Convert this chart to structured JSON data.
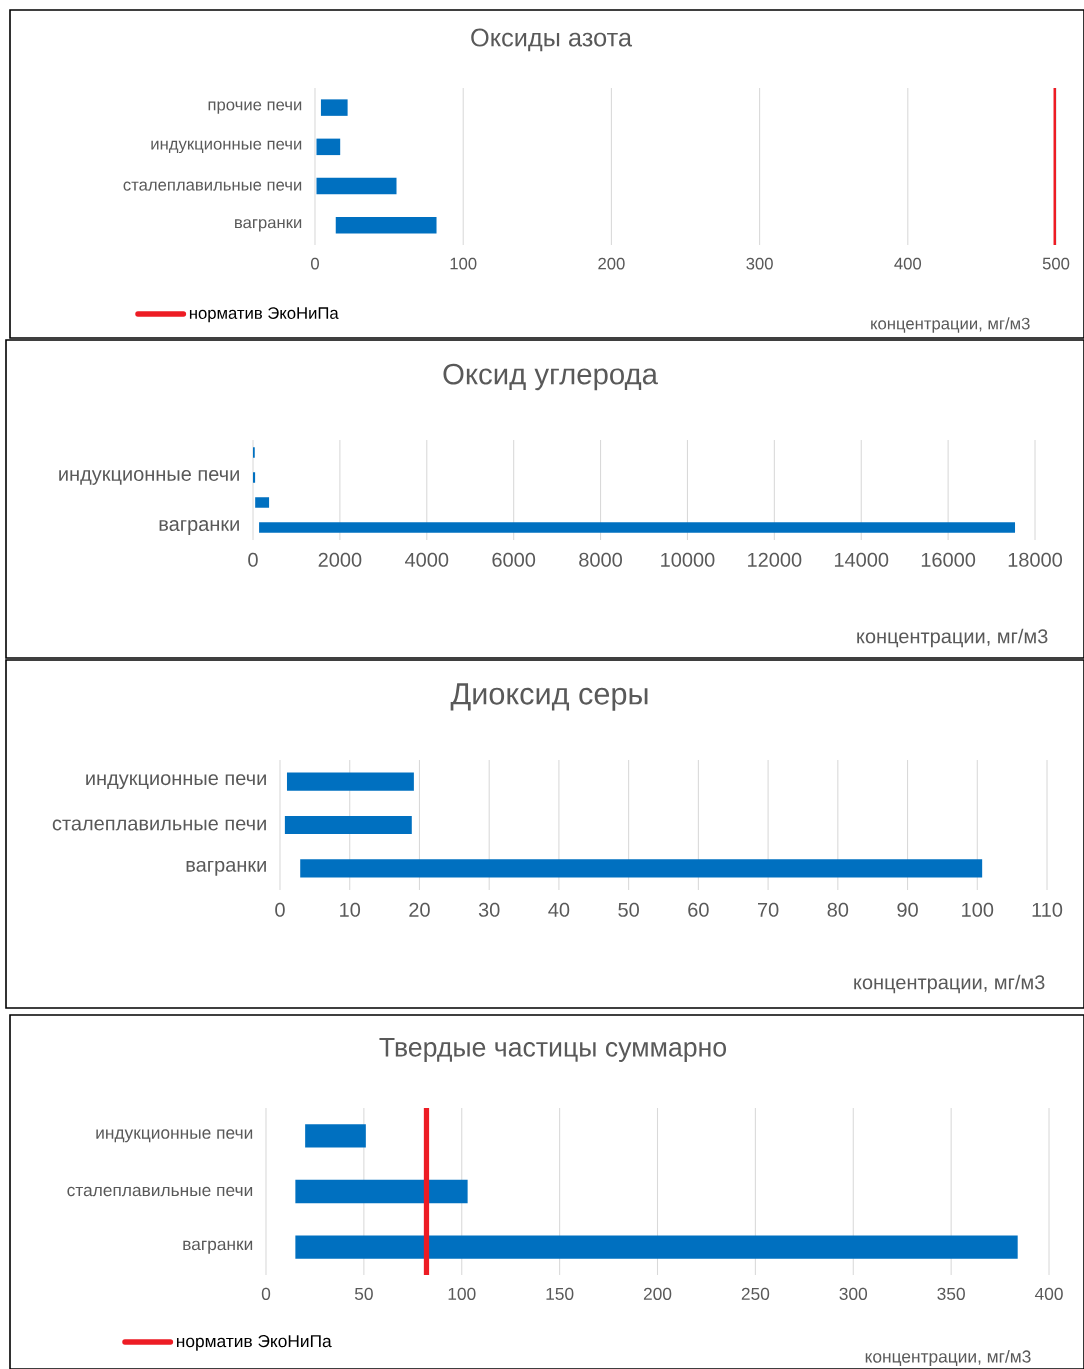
{
  "chart_data": [
    {
      "type": "bar",
      "orientation": "horizontal",
      "title": "Оксиды азота",
      "xlabel": "концентрации, мг/м3",
      "categories": [
        "прочие печи",
        "индукционные печи",
        "сталеплавильные печи",
        "вагранки"
      ],
      "base": [
        4,
        1,
        1,
        14
      ],
      "values": [
        18,
        16,
        54,
        68
      ],
      "color": "#0070c0",
      "xlim": [
        0,
        500
      ],
      "xticks": [
        0,
        100,
        200,
        300,
        400,
        500
      ],
      "grid": "x",
      "ref_lines": [
        {
          "axis": "x",
          "value": 500,
          "label": "норматив ЭкоНиПа",
          "color": "#ed1c24"
        }
      ],
      "legend": "bottom left"
    },
    {
      "type": "bar",
      "orientation": "horizontal",
      "title": "Оксид углерода",
      "xlabel": "концентрации, мг/м3",
      "categories": [
        null,
        "индукционные печи",
        null,
        "вагранки"
      ],
      "base": [
        0,
        0,
        50,
        140
      ],
      "values": [
        40,
        50,
        320,
        17400
      ],
      "color": "#0070c0",
      "xlim": [
        0,
        18000
      ],
      "xticks": [
        0,
        2000,
        4000,
        6000,
        8000,
        10000,
        12000,
        14000,
        16000,
        18000
      ],
      "grid": "x"
    },
    {
      "type": "bar",
      "orientation": "horizontal",
      "title": "Диоксид серы",
      "xlabel": "концентрации, мг/м3",
      "categories": [
        "индукционные печи",
        "сталеплавильные печи",
        "вагранки"
      ],
      "base": [
        1.0,
        0.7,
        2.9
      ],
      "values": [
        18.2,
        18.2,
        97.8
      ],
      "color": "#0070c0",
      "xlim": [
        0,
        110
      ],
      "xticks": [
        0,
        10,
        20,
        30,
        40,
        50,
        60,
        70,
        80,
        90,
        100,
        110
      ],
      "grid": "x"
    },
    {
      "type": "bar",
      "orientation": "horizontal",
      "title": "Твердые частицы суммарно",
      "xlabel": "концентрации, мг/м3",
      "categories": [
        "индукционные печи",
        "сталеплавильные печи",
        "вагранки"
      ],
      "base": [
        20,
        15,
        15
      ],
      "values": [
        31,
        88,
        369
      ],
      "color": "#0070c0",
      "xlim": [
        0,
        400
      ],
      "xticks": [
        0,
        50,
        100,
        150,
        200,
        250,
        300,
        350,
        400
      ],
      "grid": "x",
      "ref_lines": [
        {
          "axis": "x",
          "value": 82,
          "label": "норматив ЭкоНиПа",
          "color": "#ed1c24"
        }
      ],
      "legend": "bottom left"
    }
  ]
}
